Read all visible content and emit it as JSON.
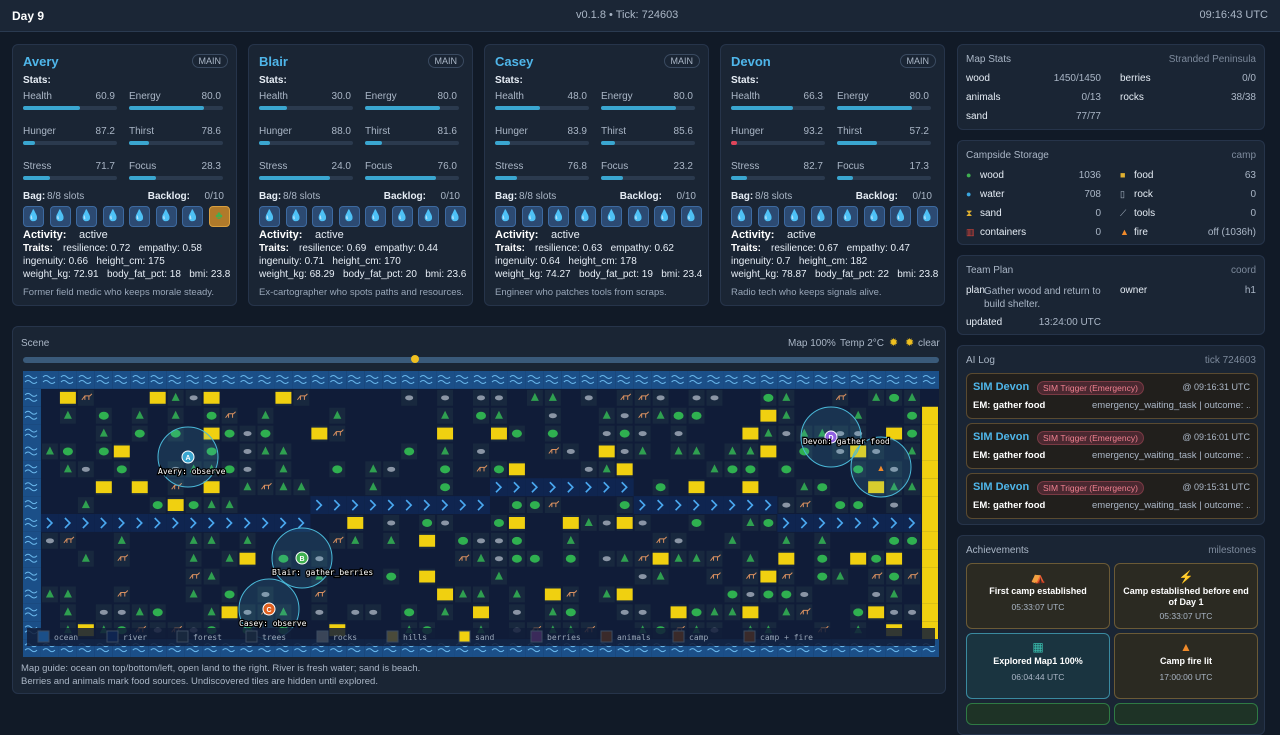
{
  "header": {
    "day": "Day 9",
    "version": "v0.1.8 • Tick: 724603",
    "time": "09:16:43 UTC"
  },
  "agents": [
    {
      "name": "Avery",
      "role": "MAIN",
      "stats_label": "Stats:",
      "stats": [
        {
          "label": "Health",
          "value": "60.9"
        },
        {
          "label": "Energy",
          "value": "80.0"
        },
        {
          "label": "Hunger",
          "value": "87.2",
          "invert": true
        },
        {
          "label": "Thirst",
          "value": "78.6",
          "invert": true
        },
        {
          "label": "Stress",
          "value": "71.7",
          "invert": true
        },
        {
          "label": "Focus",
          "value": "28.3"
        }
      ],
      "bag_label": "Bag:",
      "bag": "8/8 slots",
      "backlog_label": "Backlog:",
      "backlog": "0/10",
      "activity_label": "Activity:",
      "activity": "active",
      "traits_label": "Traits:",
      "traits": [
        "resilience: 0.72   empathy: 0.58",
        "ingenuity: 0.66   height_cm: 175",
        "weight_kg: 72.91   body_fat_pct: 18   bmi: 23.8"
      ],
      "bio": "Former field medic who keeps morale steady."
    },
    {
      "name": "Blair",
      "role": "MAIN",
      "stats_label": "Stats:",
      "stats": [
        {
          "label": "Health",
          "value": "30.0"
        },
        {
          "label": "Energy",
          "value": "80.0"
        },
        {
          "label": "Hunger",
          "value": "88.0",
          "invert": true
        },
        {
          "label": "Thirst",
          "value": "81.6",
          "invert": true
        },
        {
          "label": "Stress",
          "value": "24.0",
          "invert": true
        },
        {
          "label": "Focus",
          "value": "76.0"
        }
      ],
      "bag_label": "Bag:",
      "bag": "8/8 slots",
      "backlog_label": "Backlog:",
      "backlog": "0/10",
      "activity_label": "Activity:",
      "activity": "active",
      "traits_label": "Traits:",
      "traits": [
        "resilience: 0.69   empathy: 0.44",
        "ingenuity: 0.71   height_cm: 170",
        "weight_kg: 68.29   body_fat_pct: 20   bmi: 23.6"
      ],
      "bio": "Ex-cartographer who spots paths and resources."
    },
    {
      "name": "Casey",
      "role": "MAIN",
      "stats_label": "Stats:",
      "stats": [
        {
          "label": "Health",
          "value": "48.0"
        },
        {
          "label": "Energy",
          "value": "80.0"
        },
        {
          "label": "Hunger",
          "value": "83.9",
          "invert": true
        },
        {
          "label": "Thirst",
          "value": "85.6",
          "invert": true
        },
        {
          "label": "Stress",
          "value": "76.8",
          "invert": true
        },
        {
          "label": "Focus",
          "value": "23.2"
        }
      ],
      "bag_label": "Bag:",
      "bag": "8/8 slots",
      "backlog_label": "Backlog:",
      "backlog": "0/10",
      "activity_label": "Activity:",
      "activity": "active",
      "traits_label": "Traits:",
      "traits": [
        "resilience: 0.63   empathy: 0.62",
        "ingenuity: 0.64   height_cm: 178",
        "weight_kg: 74.27   body_fat_pct: 19   bmi: 23.4"
      ],
      "bio": "Engineer who patches tools from scraps."
    },
    {
      "name": "Devon",
      "role": "MAIN",
      "stats_label": "Stats:",
      "stats": [
        {
          "label": "Health",
          "value": "66.3"
        },
        {
          "label": "Energy",
          "value": "80.0"
        },
        {
          "label": "Hunger",
          "value": "93.2",
          "invert": true
        },
        {
          "label": "Thirst",
          "value": "57.2",
          "invert": true
        },
        {
          "label": "Stress",
          "value": "82.7",
          "invert": true
        },
        {
          "label": "Focus",
          "value": "17.3"
        }
      ],
      "bag_label": "Bag:",
      "bag": "8/8 slots",
      "backlog_label": "Backlog:",
      "backlog": "0/10",
      "activity_label": "Activity:",
      "activity": "active",
      "traits_label": "Traits:",
      "traits": [
        "resilience: 0.67   empathy: 0.47",
        "ingenuity: 0.7   height_cm: 182",
        "weight_kg: 78.87   body_fat_pct: 22   bmi: 23.8"
      ],
      "bio": "Radio tech who keeps signals alive."
    }
  ],
  "map_stats": {
    "title": "Map Stats",
    "subtitle": "Stranded Peninsula",
    "items": [
      [
        "wood",
        "1450/1450"
      ],
      [
        "berries",
        "0/0"
      ],
      [
        "animals",
        "0/13"
      ],
      [
        "rocks",
        "38/38"
      ],
      [
        "sand",
        "77/77"
      ]
    ]
  },
  "storage": {
    "title": "Campside Storage",
    "subtitle": "camp",
    "items": [
      [
        "wood",
        1036
      ],
      [
        "food",
        63
      ],
      [
        "water",
        708
      ],
      [
        "rock",
        0
      ],
      [
        "sand",
        0
      ],
      [
        "tools",
        0
      ],
      [
        "containers",
        0
      ],
      [
        "fire",
        "off (1036h)"
      ]
    ]
  },
  "team_plan": {
    "title": "Team Plan",
    "subtitle": "coord",
    "plan_label": "plan",
    "plan": "Gather wood and return to build shelter.",
    "owner_label": "owner",
    "owner": "h1",
    "updated_label": "updated",
    "updated": "13:24:00 UTC"
  },
  "ai_log": {
    "title": "AI Log",
    "subtitle": "tick 724603",
    "entries": [
      {
        "agent": "SIM Devon",
        "tag": "SIM Trigger (Emergency)",
        "time": "@ 09:16:31 UTC",
        "action": "EM: gather food",
        "detail": "emergency_waiting_task | outcome: ..."
      },
      {
        "agent": "SIM Devon",
        "tag": "SIM Trigger (Emergency)",
        "time": "@ 09:16:01 UTC",
        "action": "EM: gather food",
        "detail": "emergency_waiting_task | outcome: ..."
      },
      {
        "agent": "SIM Devon",
        "tag": "SIM Trigger (Emergency)",
        "time": "@ 09:15:31 UTC",
        "action": "EM: gather food",
        "detail": "emergency_waiting_task | outcome: ..."
      }
    ]
  },
  "achievements": {
    "title": "Achievements",
    "subtitle": "milestones",
    "items": [
      {
        "title": "First camp established",
        "time": "05:33:07 UTC"
      },
      {
        "title": "Camp established before end of Day 1",
        "time": "05:33:07 UTC"
      },
      {
        "title": "Explored Map1 100%",
        "time": "06:04:44 UTC"
      },
      {
        "title": "Camp fire lit",
        "time": "17:00:00 UTC"
      }
    ]
  },
  "scene": {
    "title": "Scene",
    "map": "Map 100%",
    "temp": "Temp 2°C",
    "weather": "clear",
    "agents": [
      {
        "marker": "A",
        "label": "Avery: observe"
      },
      {
        "marker": "B",
        "label": "Blair: gather_berries"
      },
      {
        "marker": "C",
        "label": "Casey: observe"
      },
      {
        "marker": "D",
        "label": "Devon: gather food"
      }
    ],
    "legend": [
      "ocean",
      "river",
      "forest",
      "trees",
      "rocks",
      "hills",
      "sand",
      "berries",
      "animals",
      "camp",
      "camp + fire"
    ],
    "guide": [
      "Map guide: ocean on top/bottom/left, open land to the right. River is fresh water; sand is beach.",
      "Berries and animals mark food sources. Undiscovered tiles are hidden until explored."
    ]
  }
}
